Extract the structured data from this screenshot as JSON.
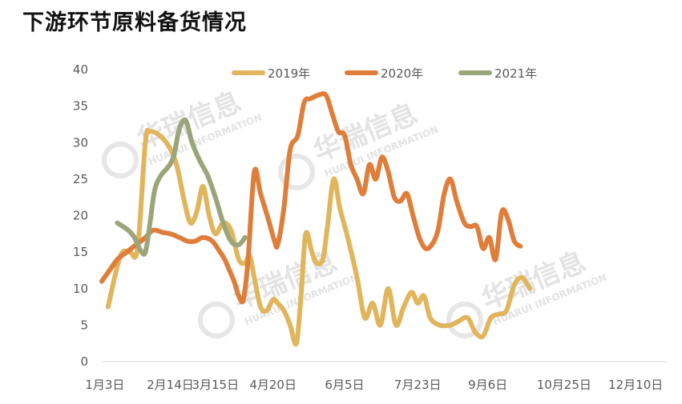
{
  "title": "下游环节原料备货情况",
  "watermark": {
    "name": "华瑞信息",
    "sub": "HUARUI INFORMATION"
  },
  "chart_data": {
    "type": "line",
    "title": "下游环节原料备货情况",
    "xlabel": "",
    "ylabel": "",
    "xlim": [
      1,
      364
    ],
    "ylim": [
      0,
      40
    ],
    "yticks": [
      0,
      5,
      10,
      15,
      20,
      25,
      30,
      35,
      40
    ],
    "xtick_labels": [
      {
        "day": 3,
        "label": "1月3日"
      },
      {
        "day": 45,
        "label": "2月14日"
      },
      {
        "day": 74,
        "label": "3月15日"
      },
      {
        "day": 111,
        "label": "4月20日"
      },
      {
        "day": 157,
        "label": "6月5日"
      },
      {
        "day": 204,
        "label": "7月23日"
      },
      {
        "day": 249,
        "label": "9月6日"
      },
      {
        "day": 298,
        "label": "10月25日"
      },
      {
        "day": 344,
        "label": "12月10日"
      }
    ],
    "grid": false,
    "legend_position": "top",
    "series": [
      {
        "name": "2019年",
        "color": "#E0B55C",
        "points": [
          [
            5,
            7.5
          ],
          [
            13,
            14.5
          ],
          [
            19,
            15
          ],
          [
            24,
            15.5
          ],
          [
            29,
            30
          ],
          [
            32,
            31.5
          ],
          [
            38,
            31
          ],
          [
            44,
            29.5
          ],
          [
            49,
            27
          ],
          [
            54,
            22
          ],
          [
            58,
            19
          ],
          [
            62,
            20.5
          ],
          [
            66,
            24
          ],
          [
            70,
            20
          ],
          [
            74,
            17.5
          ],
          [
            79,
            19
          ],
          [
            84,
            18
          ],
          [
            89,
            14
          ],
          [
            93,
            13.5
          ],
          [
            96,
            14.5
          ],
          [
            99,
            11.5
          ],
          [
            103,
            7.5
          ],
          [
            107,
            7
          ],
          [
            111,
            8.5
          ],
          [
            114,
            8
          ],
          [
            118,
            7
          ],
          [
            122,
            5
          ],
          [
            126,
            2.5
          ],
          [
            129,
            9
          ],
          [
            132,
            17.5
          ],
          [
            136,
            15
          ],
          [
            139,
            13.5
          ],
          [
            143,
            14
          ],
          [
            146,
            18.5
          ],
          [
            150,
            25
          ],
          [
            154,
            21
          ],
          [
            159,
            17
          ],
          [
            165,
            11.5
          ],
          [
            170,
            6
          ],
          [
            175,
            8
          ],
          [
            180,
            5
          ],
          [
            185,
            10
          ],
          [
            190,
            5
          ],
          [
            195,
            7.5
          ],
          [
            200,
            9.5
          ],
          [
            204,
            8
          ],
          [
            208,
            9
          ],
          [
            212,
            6
          ],
          [
            218,
            5
          ],
          [
            225,
            5
          ],
          [
            230,
            5.5
          ],
          [
            236,
            6
          ],
          [
            241,
            4
          ],
          [
            246,
            3.5
          ],
          [
            251,
            6
          ],
          [
            256,
            6.5
          ],
          [
            261,
            7
          ],
          [
            266,
            10.5
          ],
          [
            271,
            11.5
          ],
          [
            276,
            10
          ]
        ]
      },
      {
        "name": "2020年",
        "color": "#DF7E3B",
        "points": [
          [
            1,
            11
          ],
          [
            6,
            12.5
          ],
          [
            11,
            14
          ],
          [
            17,
            15
          ],
          [
            23,
            16
          ],
          [
            29,
            17
          ],
          [
            34,
            18
          ],
          [
            40,
            17.7
          ],
          [
            45,
            17.5
          ],
          [
            51,
            17
          ],
          [
            56,
            16.5
          ],
          [
            61,
            16.5
          ],
          [
            66,
            17
          ],
          [
            72,
            16.5
          ],
          [
            77,
            15
          ],
          [
            80,
            14
          ],
          [
            83,
            12.5
          ],
          [
            86,
            11
          ],
          [
            89,
            9
          ],
          [
            92,
            8.5
          ],
          [
            95,
            14
          ],
          [
            99,
            26
          ],
          [
            103,
            23
          ],
          [
            108,
            19.5
          ],
          [
            112,
            16.5
          ],
          [
            114,
            16
          ],
          [
            118,
            21
          ],
          [
            122,
            29
          ],
          [
            127,
            31
          ],
          [
            131,
            35.5
          ],
          [
            135,
            36
          ],
          [
            140,
            36.5
          ],
          [
            145,
            36.5
          ],
          [
            149,
            34
          ],
          [
            153,
            31.5
          ],
          [
            157,
            31
          ],
          [
            161,
            27
          ],
          [
            165,
            25
          ],
          [
            169,
            23
          ],
          [
            173,
            27
          ],
          [
            177,
            25
          ],
          [
            181,
            28
          ],
          [
            185,
            26
          ],
          [
            189,
            22.5
          ],
          [
            193,
            22
          ],
          [
            197,
            23
          ],
          [
            201,
            20
          ],
          [
            205,
            17
          ],
          [
            209,
            15.5
          ],
          [
            213,
            16
          ],
          [
            217,
            18
          ],
          [
            221,
            23
          ],
          [
            225,
            25
          ],
          [
            229,
            22
          ],
          [
            234,
            19
          ],
          [
            238,
            18.5
          ],
          [
            242,
            18.5
          ],
          [
            246,
            15.5
          ],
          [
            250,
            17
          ],
          [
            254,
            14
          ],
          [
            258,
            20.5
          ],
          [
            262,
            19.5
          ],
          [
            266,
            16.5
          ],
          [
            270,
            15.8
          ]
        ]
      },
      {
        "name": "2021年",
        "color": "#9BA57A",
        "points": [
          [
            11,
            19
          ],
          [
            18,
            18
          ],
          [
            22,
            17
          ],
          [
            26,
            15.2
          ],
          [
            29,
            15
          ],
          [
            32,
            19
          ],
          [
            35,
            23.5
          ],
          [
            39,
            25.5
          ],
          [
            43,
            26.5
          ],
          [
            47,
            28
          ],
          [
            51,
            32
          ],
          [
            55,
            33
          ],
          [
            59,
            30
          ],
          [
            64,
            27.5
          ],
          [
            69,
            25.5
          ],
          [
            74,
            22.5
          ],
          [
            79,
            19
          ],
          [
            84,
            16.5
          ],
          [
            89,
            16
          ],
          [
            93,
            17
          ]
        ]
      }
    ]
  }
}
